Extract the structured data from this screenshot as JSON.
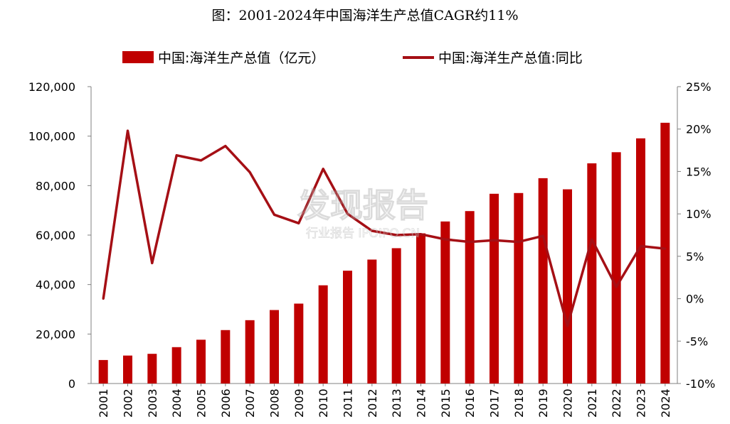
{
  "chart_data": {
    "type": "bar",
    "title": "图：2001-2024年中国海洋生产总值CAGR约11%",
    "categories": [
      "2001",
      "2002",
      "2003",
      "2004",
      "2005",
      "2006",
      "2007",
      "2008",
      "2009",
      "2010",
      "2011",
      "2012",
      "2013",
      "2014",
      "2015",
      "2016",
      "2017",
      "2018",
      "2019",
      "2020",
      "2021",
      "2022",
      "2023",
      "2024"
    ],
    "series": [
      {
        "name": "中国:海洋生产总值（亿元）",
        "type": "bar",
        "axis": "left",
        "values": [
          9500,
          11300,
          12000,
          14700,
          17700,
          21600,
          25600,
          29700,
          32300,
          39700,
          45600,
          50100,
          54700,
          60700,
          65500,
          69700,
          76700,
          77000,
          83000,
          78500,
          89000,
          93500,
          99100,
          105400
        ]
      },
      {
        "name": "中国:海洋生产总值:同比",
        "type": "line",
        "axis": "right",
        "values": [
          0.0,
          19.8,
          4.2,
          16.9,
          16.3,
          18.0,
          14.9,
          9.9,
          8.9,
          15.3,
          10.0,
          8.0,
          7.5,
          7.6,
          7.0,
          6.7,
          6.9,
          6.7,
          7.4,
          -3.2,
          7.0,
          1.4,
          6.2,
          5.9
        ]
      }
    ],
    "y_left": {
      "min": 0,
      "max": 120000,
      "step": 20000
    },
    "y_right": {
      "min": -10,
      "max": 25,
      "step": 5,
      "unit": "%"
    },
    "colors": {
      "bar": "#c00000",
      "line": "#a50f15"
    },
    "legend_position": "top"
  },
  "watermark": {
    "main": "发现报告",
    "sub": "行业报告 IPOIPO.CN"
  }
}
